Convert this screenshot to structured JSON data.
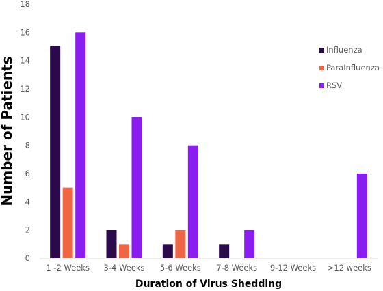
{
  "chart_data": {
    "type": "bar",
    "title": "",
    "xlabel": "Duration of Virus Shedding",
    "ylabel": "Number of Patients",
    "ylim": [
      0,
      18
    ],
    "yticks": [
      0,
      2,
      4,
      6,
      8,
      10,
      12,
      14,
      16,
      18
    ],
    "categories": [
      "1 -2 Weeks",
      "3-4 Weeks",
      "5-6 Weeks",
      "7-8 Weeks",
      "9-12 Weeks",
      ">12 weeks"
    ],
    "series": [
      {
        "name": "Influenza",
        "color": "#2a0a4a",
        "values": [
          15,
          2,
          1,
          1,
          0,
          0
        ]
      },
      {
        "name": "ParaInfluenza",
        "color": "#ee6644",
        "values": [
          5,
          1,
          2,
          0,
          0,
          0
        ]
      },
      {
        "name": "RSV",
        "color": "#8a1ef0",
        "values": [
          16,
          10,
          8,
          2,
          0,
          6
        ]
      }
    ],
    "grid": false,
    "legend_position": "right"
  }
}
